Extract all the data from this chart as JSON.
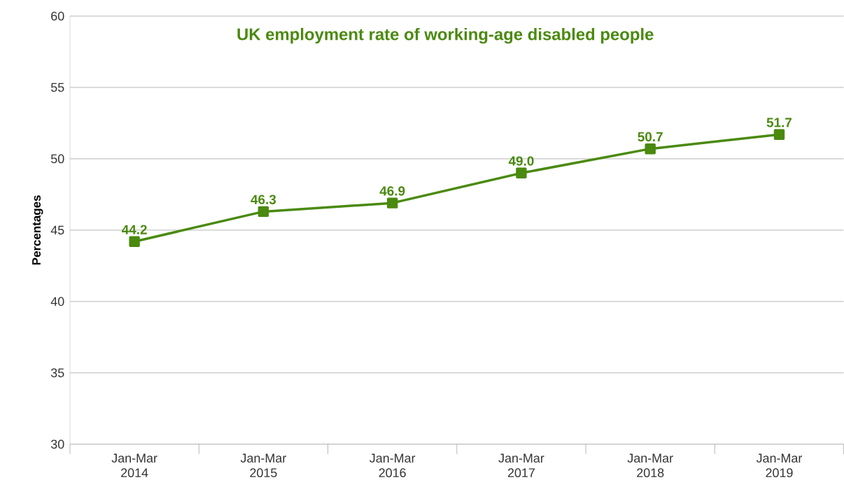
{
  "chart_data": {
    "type": "line",
    "title": "UK employment rate of working-age disabled people",
    "ylabel": "Percentages",
    "categories": [
      "Jan-Mar 2014",
      "Jan-Mar 2015",
      "Jan-Mar 2016",
      "Jan-Mar 2017",
      "Jan-Mar 2018",
      "Jan-Mar 2019"
    ],
    "values": [
      44.2,
      46.3,
      46.9,
      49.0,
      50.7,
      51.7
    ],
    "value_labels": [
      "44.2",
      "46.3",
      "46.9",
      "49.0",
      "50.7",
      "51.7"
    ],
    "color": "#4a8a0f",
    "marker": "square",
    "line_style": "solid",
    "ylim": [
      30,
      60
    ],
    "yticks": [
      30,
      35,
      40,
      45,
      50,
      55,
      60
    ],
    "grid": "y"
  }
}
